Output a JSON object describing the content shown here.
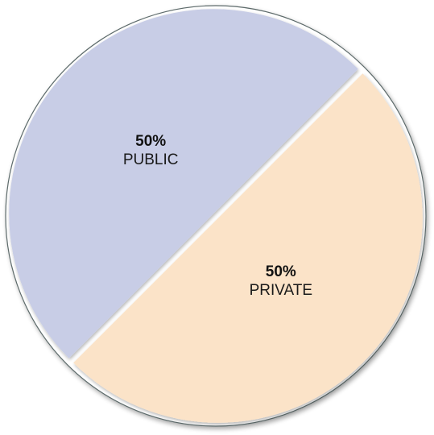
{
  "chart_data": {
    "type": "pie",
    "slices": [
      {
        "label": "PRIVATE",
        "value": 50,
        "value_label": "50%",
        "color": "#fbe3c8"
      },
      {
        "label": "PUBLIC",
        "value": 50,
        "value_label": "50%",
        "color": "#c8cde6"
      }
    ],
    "legend": "none",
    "outline_color": "#5d6b6b",
    "separator_color": "#9a9a9a"
  }
}
